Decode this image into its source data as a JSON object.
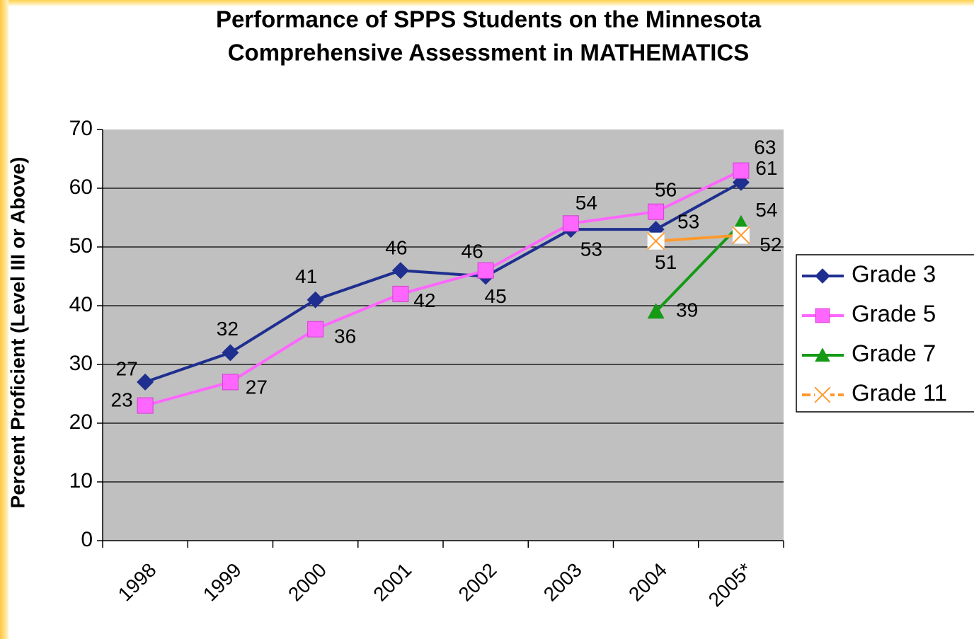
{
  "chart_data": {
    "type": "line",
    "title": [
      "Performance of SPPS Students on the Minnesota",
      "Comprehensive Assessment in MATHEMATICS"
    ],
    "y_label": "Percent Proficient (Level III or Above)",
    "categories": [
      "1998",
      "1999",
      "2000",
      "2001",
      "2002",
      "2003",
      "2004",
      "2005*"
    ],
    "series": [
      {
        "name": "Grade 3",
        "color": "#1f2f8f",
        "marker": "diamond",
        "values": [
          27,
          32,
          41,
          46,
          45,
          53,
          53,
          61
        ]
      },
      {
        "name": "Grade 5",
        "color": "#ff66ff",
        "marker": "square",
        "values": [
          23,
          27,
          36,
          42,
          46,
          54,
          56,
          63
        ]
      },
      {
        "name": "Grade 7",
        "color": "#159a15",
        "marker": "triangle",
        "values": [
          null,
          null,
          null,
          null,
          null,
          null,
          39,
          54
        ]
      },
      {
        "name": "Grade 11",
        "color": "#ff9a2e",
        "marker": "x",
        "values": [
          null,
          null,
          null,
          null,
          null,
          null,
          51,
          52
        ]
      }
    ],
    "ylim": [
      0,
      70
    ],
    "yticks": [
      0,
      10,
      20,
      30,
      40,
      50,
      60,
      70
    ],
    "grid": true,
    "legend": "right"
  }
}
